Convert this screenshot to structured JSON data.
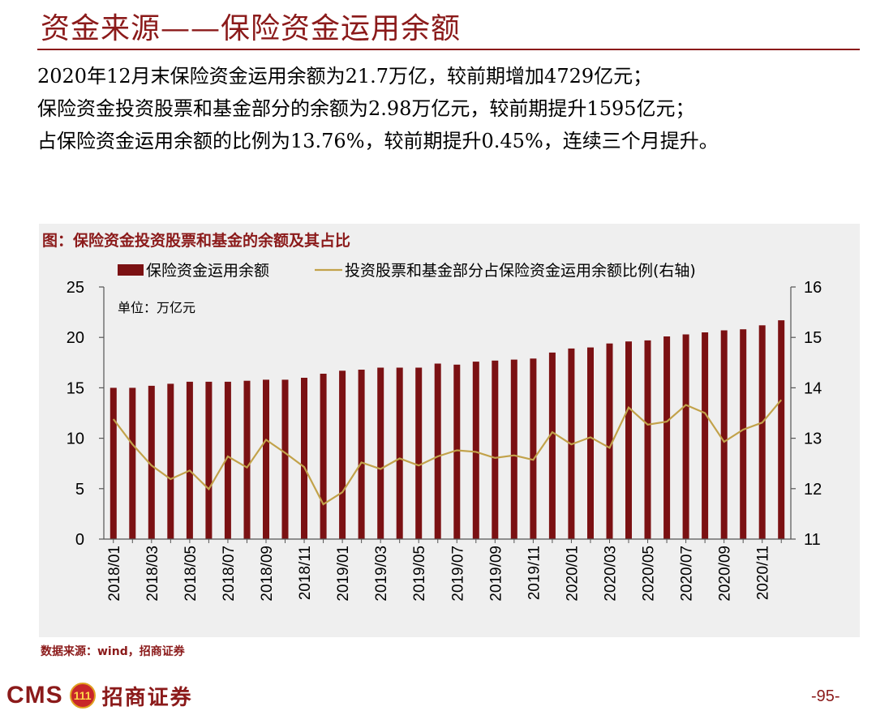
{
  "header": {
    "title": "资金来源——保险资金运用余额"
  },
  "summary": {
    "line1": "2020年12月末保险资金运用余额为21.7万亿，较前期增加4729亿元；",
    "line2": "保险资金投资股票和基金部分的余额为2.98万亿元，较前期提升1595亿元；",
    "line3": "占保险资金运用余额的比例为13.76%，较前期提升0.45%，连续三个月提升。"
  },
  "chart_title": "图：保险资金投资股票和基金的余额及其占比",
  "chart_data": {
    "type": "bar+line",
    "title": "图：保险资金投资股票和基金的余额及其占比",
    "unit_note": "单位：万亿元",
    "categories": [
      "2018/01",
      "2018/02",
      "2018/03",
      "2018/04",
      "2018/05",
      "2018/06",
      "2018/07",
      "2018/08",
      "2018/09",
      "2018/10",
      "2018/11",
      "2018/12",
      "2019/01",
      "2019/02",
      "2019/03",
      "2019/04",
      "2019/05",
      "2019/06",
      "2019/07",
      "2019/08",
      "2019/09",
      "2019/10",
      "2019/11",
      "2019/12",
      "2020/01",
      "2020/02",
      "2020/03",
      "2020/04",
      "2020/05",
      "2020/06",
      "2020/07",
      "2020/08",
      "2020/09",
      "2020/10",
      "2020/11",
      "2020/12"
    ],
    "x_tick_labels": [
      "2018/01",
      "2018/03",
      "2018/05",
      "2018/07",
      "2018/09",
      "2018/11",
      "2019/01",
      "2019/03",
      "2019/05",
      "2019/07",
      "2019/09",
      "2019/11",
      "2020/01",
      "2020/03",
      "2020/05",
      "2020/07",
      "2020/09",
      "2020/11"
    ],
    "series": [
      {
        "name": "保险资金运用余额",
        "type": "bar",
        "axis": "left",
        "color": "#7b1113",
        "values": [
          15.0,
          15.0,
          15.2,
          15.4,
          15.6,
          15.6,
          15.6,
          15.7,
          15.8,
          15.8,
          16.0,
          16.4,
          16.7,
          16.8,
          17.0,
          17.0,
          17.0,
          17.4,
          17.3,
          17.6,
          17.7,
          17.8,
          17.9,
          18.5,
          18.9,
          19.0,
          19.4,
          19.6,
          19.7,
          20.1,
          20.3,
          20.5,
          20.7,
          20.8,
          21.2,
          21.7
        ]
      },
      {
        "name": "投资股票和基金部分占保险资金运用余额比例(右轴)",
        "type": "line",
        "axis": "right",
        "color": "#c2a24a",
        "values": [
          13.38,
          12.88,
          12.46,
          12.19,
          12.36,
          11.99,
          12.64,
          12.42,
          12.97,
          12.71,
          12.43,
          11.69,
          11.93,
          12.52,
          12.39,
          12.6,
          12.46,
          12.64,
          12.76,
          12.73,
          12.61,
          12.66,
          12.57,
          13.12,
          12.88,
          13.02,
          12.81,
          13.61,
          13.27,
          13.33,
          13.66,
          13.5,
          12.93,
          13.17,
          13.31,
          13.76
        ]
      }
    ],
    "y_left": {
      "min": 0,
      "max": 25,
      "ticks": [
        0,
        5,
        10,
        15,
        20,
        25
      ]
    },
    "y_right": {
      "min": 11,
      "max": 16,
      "ticks": [
        11,
        12,
        13,
        14,
        15,
        16
      ]
    },
    "legend_placement": "top-center",
    "grid": false
  },
  "source": "数据来源：wind，招商证券",
  "footer": {
    "logo_text": "CMS",
    "logo_mark": "111",
    "company": "招商证券",
    "page_number": "-95-"
  }
}
